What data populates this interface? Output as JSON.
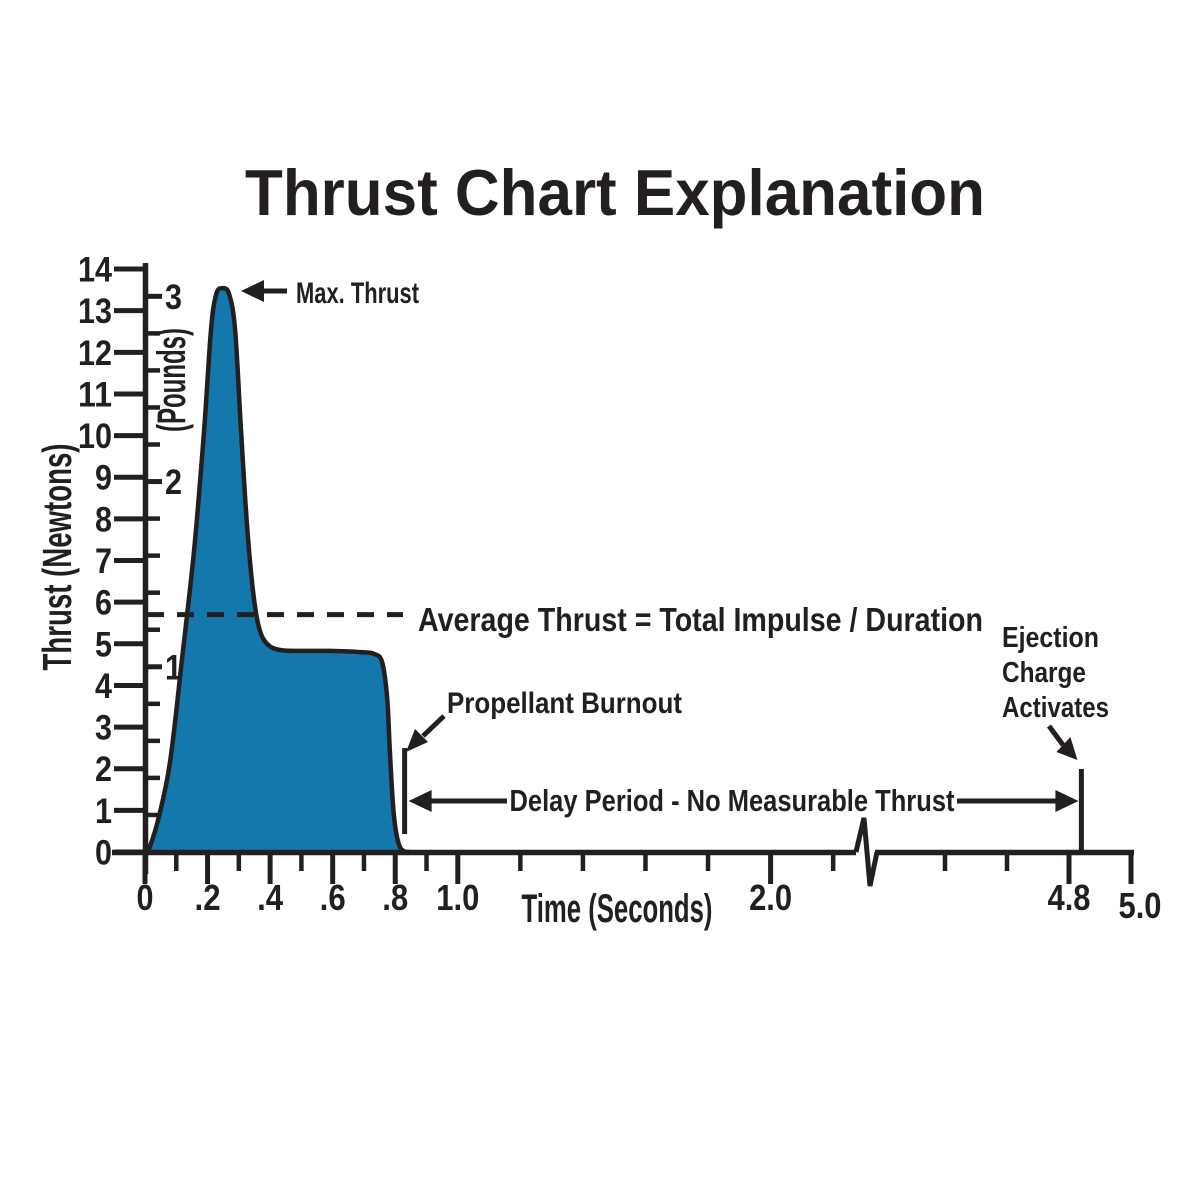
{
  "page": {
    "background": "#ffffff"
  },
  "chart_data": {
    "type": "area",
    "title": "Thrust Chart Explanation",
    "x_axis": {
      "label": "Time (Seconds)",
      "unit": "seconds",
      "range": [
        0,
        5.0
      ],
      "axis_break": {
        "from": 2.3,
        "to": 4.3
      },
      "major_ticks": [
        {
          "t": 0,
          "label": "0"
        },
        {
          "t": 0.2,
          "label": ".2"
        },
        {
          "t": 0.4,
          "label": ".4"
        },
        {
          "t": 0.6,
          "label": ".6"
        },
        {
          "t": 0.8,
          "label": ".8"
        },
        {
          "t": 1.0,
          "label": "1.0"
        },
        {
          "t": 2.0,
          "label": "2.0"
        },
        {
          "t": 4.8,
          "label": "4.8"
        },
        {
          "t": 5.0,
          "label": "5.0"
        }
      ],
      "minor_ticks": [
        0.1,
        0.3,
        0.5,
        0.7,
        0.9,
        1.2,
        1.4,
        1.6,
        1.8,
        2.2,
        4.4,
        4.6
      ]
    },
    "y_axis_newtons": {
      "label": "Thrust (Newtons)",
      "range": [
        0,
        14
      ],
      "ticks": [
        0,
        1,
        2,
        3,
        4,
        5,
        6,
        7,
        8,
        9,
        10,
        11,
        12,
        13,
        14
      ]
    },
    "y_axis_pounds": {
      "label": "(Pounds)",
      "major_ticks": [
        1,
        2,
        3
      ],
      "minor_ticks": [
        0.2,
        0.4,
        0.6,
        0.8,
        1.2,
        1.4,
        1.6,
        1.8,
        2.2,
        2.4,
        2.6,
        2.8
      ],
      "newtons_per_pound": 4.44822
    },
    "curve": {
      "fill_color": "#1478ad",
      "outline_color": "#231f20",
      "points_t_newtons": [
        [
          0.01,
          0.0
        ],
        [
          0.042,
          0.77
        ],
        [
          0.08,
          2.16
        ],
        [
          0.118,
          4.61
        ],
        [
          0.157,
          7.25
        ],
        [
          0.189,
          10.13
        ],
        [
          0.211,
          12.54
        ],
        [
          0.227,
          13.38
        ],
        [
          0.246,
          13.54
        ],
        [
          0.269,
          13.4
        ],
        [
          0.288,
          12.54
        ],
        [
          0.307,
          10.13
        ],
        [
          0.326,
          7.85
        ],
        [
          0.345,
          6.29
        ],
        [
          0.364,
          5.4
        ],
        [
          0.39,
          5.0
        ],
        [
          0.432,
          4.85
        ],
        [
          0.496,
          4.83
        ],
        [
          0.592,
          4.83
        ],
        [
          0.687,
          4.8
        ],
        [
          0.732,
          4.76
        ],
        [
          0.758,
          4.56
        ],
        [
          0.774,
          3.72
        ],
        [
          0.783,
          2.4
        ],
        [
          0.793,
          1.1
        ],
        [
          0.803,
          0.46
        ],
        [
          0.815,
          0.12
        ],
        [
          0.828,
          0.02
        ],
        [
          0.845,
          0.0
        ]
      ]
    },
    "key_values": {
      "max_thrust_n": 13.5,
      "average_thrust_n": 5.7,
      "burnout_time_s": 0.83,
      "ejection_time_s": 4.84
    }
  },
  "annotations": {
    "max_thrust": "Max. Thrust",
    "average_thrust": "Average Thrust = Total Impulse / Duration",
    "propellant_burnout": "Propellant Burnout",
    "delay_period": "Delay Period - No Measurable Thrust",
    "ejection_charge_lines": [
      "Ejection",
      "Charge",
      "Activates"
    ]
  }
}
